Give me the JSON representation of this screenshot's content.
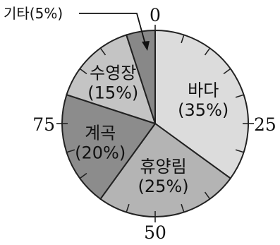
{
  "chart_data": {
    "type": "pie",
    "title": "",
    "start": "top",
    "direction": "clockwise",
    "slices": [
      {
        "name": "바다",
        "label": "(35%)",
        "value": 35,
        "color": "#dcdcdc"
      },
      {
        "name": "휴양림",
        "label": "(25%)",
        "value": 25,
        "color": "#b4b4b4"
      },
      {
        "name": "계곡",
        "label": "(20%)",
        "value": 20,
        "color": "#8c8c8c"
      },
      {
        "name": "수영장",
        "label": "(15%)",
        "value": 15,
        "color": "#c4c4c4"
      },
      {
        "name": "기타",
        "label": "",
        "value": 5,
        "color": "#888888"
      }
    ],
    "callout": {
      "text": "기타(5%)"
    },
    "scale": {
      "labels": [
        "0",
        "25",
        "50",
        "75"
      ],
      "ticks": 20
    }
  }
}
